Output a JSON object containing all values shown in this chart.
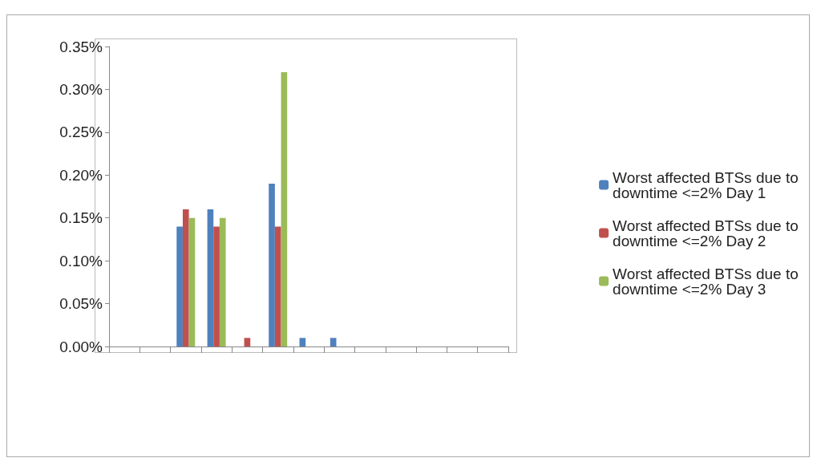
{
  "chart_data": {
    "type": "bar",
    "categories": [
      null,
      null,
      null,
      null,
      null,
      null,
      null,
      null,
      null,
      null,
      null,
      null,
      null
    ],
    "series": [
      {
        "name": "Worst affected BTSs due to downtime <=2% Day 1",
        "color": "#4f81bd",
        "values": [
          0,
          0,
          0.14,
          0.16,
          0,
          0.19,
          0.01,
          0.01,
          0,
          0,
          0,
          0,
          0
        ]
      },
      {
        "name": "Worst affected BTSs due to downtime <=2% Day 2",
        "color": "#c0504d",
        "values": [
          0,
          0,
          0.16,
          0.14,
          0.01,
          0.14,
          0,
          0,
          0,
          0,
          0,
          0,
          0
        ]
      },
      {
        "name": "Worst affected BTSs due to downtime <=2% Day 3",
        "color": "#9bbb59",
        "values": [
          0,
          0,
          0.15,
          0.15,
          0,
          0.32,
          0,
          0,
          0,
          0,
          0,
          0,
          0
        ]
      }
    ],
    "ylim": [
      0,
      0.35
    ],
    "yticks": [
      {
        "value": 0,
        "label": "0.00%"
      },
      {
        "value": 0.05,
        "label": "0.05%"
      },
      {
        "value": 0.1,
        "label": "0.10%"
      },
      {
        "value": 0.15,
        "label": "0.15%"
      },
      {
        "value": 0.2,
        "label": "0.20%"
      },
      {
        "value": 0.25,
        "label": "0.25%"
      },
      {
        "value": 0.3,
        "label": "0.30%"
      },
      {
        "value": 0.35,
        "label": "0.35%"
      }
    ],
    "grid": false,
    "legend": "right"
  }
}
